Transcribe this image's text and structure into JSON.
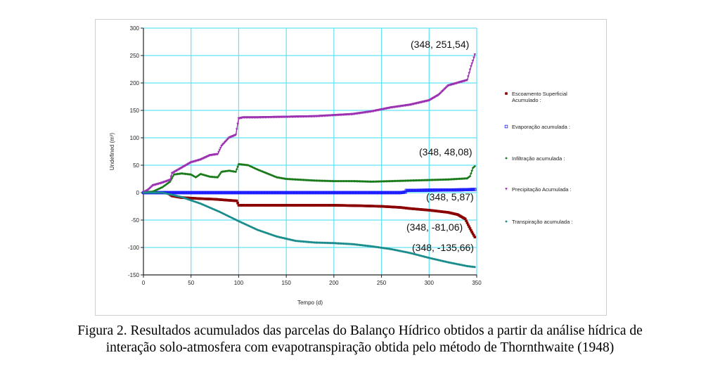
{
  "chart_data": {
    "type": "line",
    "xlabel": "Tempo (d)",
    "ylabel": "Undefined (m³)",
    "xlim": [
      0,
      350
    ],
    "ylim": [
      -150,
      300
    ],
    "xticks": [
      0,
      50,
      100,
      150,
      200,
      250,
      300,
      350
    ],
    "yticks": [
      -150,
      -100,
      -50,
      0,
      50,
      100,
      150,
      200,
      250,
      300
    ],
    "grid": true,
    "legend_position": "right",
    "series": [
      {
        "name": "Escoamento Superficial Acumulado :",
        "color": "#8b0000",
        "marker": "square",
        "points": [
          [
            0,
            0
          ],
          [
            25,
            0
          ],
          [
            30,
            -6
          ],
          [
            40,
            -9
          ],
          [
            50,
            -10
          ],
          [
            60,
            -11
          ],
          [
            75,
            -12
          ],
          [
            90,
            -14
          ],
          [
            98,
            -15
          ],
          [
            100,
            -23
          ],
          [
            120,
            -23
          ],
          [
            150,
            -23
          ],
          [
            180,
            -23
          ],
          [
            200,
            -23
          ],
          [
            230,
            -24
          ],
          [
            250,
            -25
          ],
          [
            270,
            -27
          ],
          [
            280,
            -29
          ],
          [
            300,
            -32
          ],
          [
            320,
            -36
          ],
          [
            330,
            -40
          ],
          [
            338,
            -48
          ],
          [
            342,
            -62
          ],
          [
            345,
            -72
          ],
          [
            348,
            -81.06
          ]
        ]
      },
      {
        "name": "Evaporação acumulada :",
        "color": "#1a1aff",
        "marker": "open-square",
        "points": [
          [
            0,
            0
          ],
          [
            100,
            0
          ],
          [
            200,
            0
          ],
          [
            270,
            0
          ],
          [
            275,
            1
          ],
          [
            276,
            4
          ],
          [
            300,
            4.5
          ],
          [
            330,
            5
          ],
          [
            348,
            5.87
          ]
        ]
      },
      {
        "name": "Infiltração acumulada :",
        "color": "#1a7a1a",
        "marker": "diamond",
        "points": [
          [
            0,
            0
          ],
          [
            10,
            2
          ],
          [
            20,
            10
          ],
          [
            28,
            20
          ],
          [
            32,
            33
          ],
          [
            40,
            35
          ],
          [
            50,
            33
          ],
          [
            55,
            28
          ],
          [
            60,
            34
          ],
          [
            70,
            29
          ],
          [
            78,
            28
          ],
          [
            82,
            38
          ],
          [
            90,
            40
          ],
          [
            97,
            38
          ],
          [
            100,
            52
          ],
          [
            110,
            50
          ],
          [
            120,
            42
          ],
          [
            130,
            35
          ],
          [
            140,
            28
          ],
          [
            150,
            25
          ],
          [
            160,
            24
          ],
          [
            180,
            22
          ],
          [
            200,
            21
          ],
          [
            220,
            21
          ],
          [
            240,
            20
          ],
          [
            260,
            21
          ],
          [
            280,
            22
          ],
          [
            300,
            23
          ],
          [
            320,
            24
          ],
          [
            340,
            26
          ],
          [
            343,
            30
          ],
          [
            346,
            45
          ],
          [
            348,
            48.08
          ]
        ]
      },
      {
        "name": "Precipitação Acumulada :",
        "color": "#9b30b0",
        "marker": "triangle-down",
        "points": [
          [
            0,
            0
          ],
          [
            5,
            5
          ],
          [
            10,
            13
          ],
          [
            20,
            18
          ],
          [
            28,
            23
          ],
          [
            30,
            35
          ],
          [
            40,
            45
          ],
          [
            50,
            55
          ],
          [
            60,
            60
          ],
          [
            70,
            68
          ],
          [
            78,
            70
          ],
          [
            82,
            85
          ],
          [
            90,
            100
          ],
          [
            97,
            105
          ],
          [
            100,
            135
          ],
          [
            105,
            137
          ],
          [
            120,
            137
          ],
          [
            150,
            138
          ],
          [
            180,
            139
          ],
          [
            200,
            141
          ],
          [
            220,
            143
          ],
          [
            240,
            148
          ],
          [
            260,
            155
          ],
          [
            280,
            160
          ],
          [
            300,
            168
          ],
          [
            310,
            178
          ],
          [
            320,
            195
          ],
          [
            330,
            200
          ],
          [
            340,
            205
          ],
          [
            344,
            230
          ],
          [
            346,
            240
          ],
          [
            348,
            251.54
          ]
        ]
      },
      {
        "name": "Transpiração acumulada :",
        "color": "#1a8c8c",
        "marker": "diamond",
        "points": [
          [
            0,
            0
          ],
          [
            20,
            0
          ],
          [
            40,
            -8
          ],
          [
            60,
            -20
          ],
          [
            80,
            -35
          ],
          [
            100,
            -52
          ],
          [
            120,
            -68
          ],
          [
            140,
            -80
          ],
          [
            160,
            -88
          ],
          [
            180,
            -91
          ],
          [
            200,
            -92
          ],
          [
            220,
            -94
          ],
          [
            240,
            -98
          ],
          [
            260,
            -103
          ],
          [
            280,
            -110
          ],
          [
            300,
            -119
          ],
          [
            320,
            -127
          ],
          [
            340,
            -134
          ],
          [
            348,
            -135.66
          ]
        ]
      }
    ],
    "annotations": [
      "(348, 251,54)",
      "(348, 48,08)",
      "(348, 5,87)",
      "(348, -81,06)",
      "(348, -135,66)"
    ]
  },
  "caption": {
    "line1": "Figura 2. Resultados acumulados das parcelas do Balanço Hídrico obtidos a partir da análise hídrica de",
    "line2": "interação solo-atmosfera com evapotranspiração obtida pelo método de Thornthwaite (1948)"
  }
}
